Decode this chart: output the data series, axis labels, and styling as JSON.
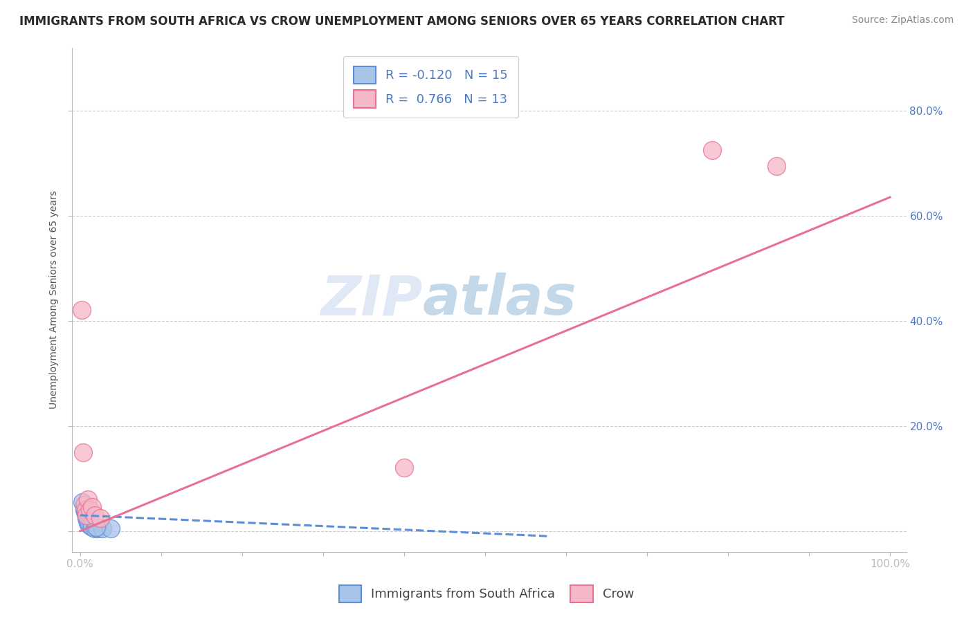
{
  "title": "IMMIGRANTS FROM SOUTH AFRICA VS CROW UNEMPLOYMENT AMONG SENIORS OVER 65 YEARS CORRELATION CHART",
  "source": "Source: ZipAtlas.com",
  "ylabel": "Unemployment Among Seniors over 65 years",
  "xlabel": "",
  "xlim": [
    -0.01,
    1.02
  ],
  "ylim": [
    -0.04,
    0.92
  ],
  "yticks": [
    0.0,
    0.2,
    0.4,
    0.6,
    0.8
  ],
  "ytick_labels": [
    "",
    "20.0%",
    "40.0%",
    "60.0%",
    "80.0%"
  ],
  "xticks": [
    0.0,
    0.1,
    0.2,
    0.3,
    0.4,
    0.5,
    0.6,
    0.7,
    0.8,
    0.9,
    1.0
  ],
  "xtick_labels": [
    "0.0%",
    "",
    "",
    "",
    "",
    "",
    "",
    "",
    "",
    "",
    "100.0%"
  ],
  "blue_R": -0.12,
  "blue_N": 15,
  "pink_R": 0.766,
  "pink_N": 13,
  "blue_color": "#a8c4e8",
  "pink_color": "#f5b8c8",
  "blue_line_color": "#5b8dd9",
  "pink_line_color": "#e87090",
  "legend_label_blue": "Immigrants from South Africa",
  "legend_label_pink": "Crow",
  "watermark_zip": "ZIP",
  "watermark_atlas": "atlas",
  "blue_scatter_x": [
    0.003,
    0.005,
    0.006,
    0.007,
    0.008,
    0.009,
    0.01,
    0.011,
    0.013,
    0.015,
    0.018,
    0.022,
    0.028,
    0.038,
    0.02
  ],
  "blue_scatter_y": [
    0.055,
    0.04,
    0.038,
    0.032,
    0.025,
    0.02,
    0.015,
    0.012,
    0.01,
    0.008,
    0.005,
    0.005,
    0.005,
    0.005,
    0.008
  ],
  "pink_scatter_x": [
    0.002,
    0.004,
    0.005,
    0.007,
    0.008,
    0.01,
    0.012,
    0.015,
    0.018,
    0.025,
    0.4,
    0.78,
    0.86
  ],
  "pink_scatter_y": [
    0.42,
    0.15,
    0.05,
    0.04,
    0.03,
    0.06,
    0.04,
    0.045,
    0.03,
    0.025,
    0.12,
    0.725,
    0.695
  ],
  "blue_trend_x": [
    0.0,
    0.58
  ],
  "blue_trend_y": [
    0.03,
    -0.01
  ],
  "pink_trend_x": [
    0.0,
    1.0
  ],
  "pink_trend_y": [
    0.0,
    0.635
  ],
  "background_color": "#ffffff",
  "grid_color": "#cccccc",
  "title_color": "#2a2a2a",
  "axis_color": "#4a7ac7",
  "font_size_title": 12,
  "font_size_axis": 10,
  "font_size_ticks": 11,
  "font_size_legend": 13,
  "font_size_source": 10
}
